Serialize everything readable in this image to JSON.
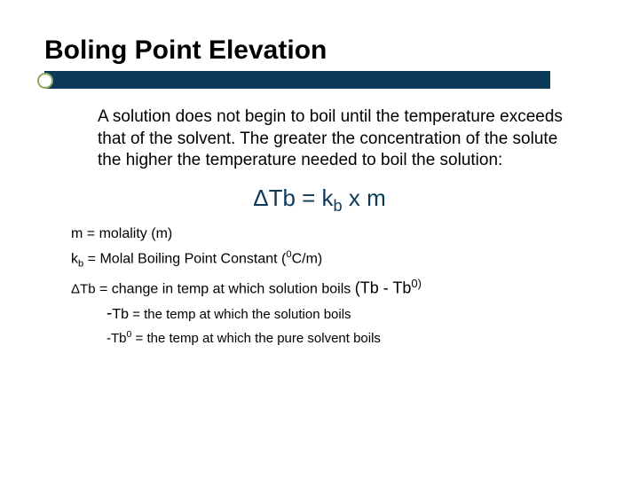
{
  "colors": {
    "bar_bg": "#0e3a5a",
    "bullet_ring": "#8fa860",
    "text": "#000000",
    "formula": "#0e3a5a",
    "background": "#ffffff"
  },
  "title": "Boling Point Elevation",
  "paragraph": "A solution does not begin to boil until the temperature exceeds that of the solvent. The greater the concentration of the solute the higher the temperature needed to boil the solution:",
  "formula": {
    "delta": "Δ",
    "lhs_main": "Tb",
    "eq": " = ",
    "k": "k",
    "k_sub": "b",
    "times": "  x  ",
    "m": "m"
  },
  "definitions": [
    {
      "lhs": "m",
      "rhs": " = molality (m)"
    },
    {
      "lhs_k": "k",
      "lhs_sub": "b",
      "rhs_pre": " = Molal Boiling Point Constant (",
      "sup": "0",
      "rhs_mid": "C/m)"
    },
    {
      "lhs_delta": "Δ",
      "lhs_main": "Tb",
      "rhs": " = change in temp at which solution boils ",
      "paren_open": "(Tb  -  Tb",
      "paren_sup": "0)",
      "paren_close": ""
    }
  ],
  "sub_definitions": [
    {
      "dash": "-",
      "lhs": "Tb",
      "rhs": " = the temp at which the solution boils"
    },
    {
      "dash": "-",
      "lhs": "Tb",
      "sup": "0",
      "rhs": " = the temp at which the pure solvent boils"
    }
  ],
  "typography": {
    "title_fontsize": 30,
    "body_fontsize": 19,
    "formula_fontsize": 26,
    "def_fontsize": 16,
    "subdef_fontsize": 15
  }
}
